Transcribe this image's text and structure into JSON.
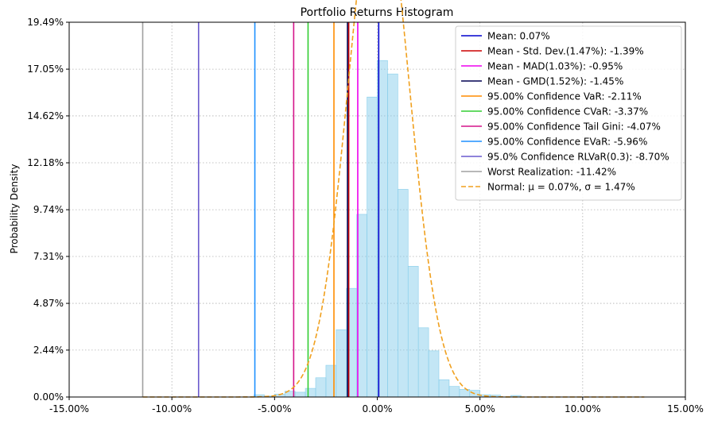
{
  "chart_data": {
    "type": "histogram",
    "title": "Portfolio Returns Histogram",
    "xlabel": "",
    "ylabel": "Probability Density",
    "xlim": [
      -15.0,
      15.0
    ],
    "ylim": [
      0.0,
      19.49
    ],
    "x_ticks": [
      {
        "value": -15,
        "label": "-15.00%"
      },
      {
        "value": -10,
        "label": "-10.00%"
      },
      {
        "value": -5,
        "label": "-5.00%"
      },
      {
        "value": 0,
        "label": "0.00%"
      },
      {
        "value": 5,
        "label": "5.00%"
      },
      {
        "value": 10,
        "label": "10.00%"
      },
      {
        "value": 15,
        "label": "15.00%"
      }
    ],
    "y_ticks": [
      {
        "value": 0.0,
        "label": "0.00%"
      },
      {
        "value": 2.44,
        "label": "2.44%"
      },
      {
        "value": 4.87,
        "label": "4.87%"
      },
      {
        "value": 7.31,
        "label": "7.31%"
      },
      {
        "value": 9.74,
        "label": "9.74%"
      },
      {
        "value": 12.18,
        "label": "12.18%"
      },
      {
        "value": 14.62,
        "label": "14.62%"
      },
      {
        "value": 17.05,
        "label": "17.05%"
      },
      {
        "value": 19.49,
        "label": "19.49%"
      }
    ],
    "grid": true,
    "legend_position": "top-right",
    "histogram": {
      "color": "#87ceeb",
      "bins": [
        {
          "x0": -6.0,
          "x1": -5.5,
          "density": 0.12
        },
        {
          "x0": -5.5,
          "x1": -5.0,
          "density": 0.05
        },
        {
          "x0": -5.0,
          "x1": -4.5,
          "density": 0.15
        },
        {
          "x0": -4.5,
          "x1": -4.0,
          "density": 0.3
        },
        {
          "x0": -4.0,
          "x1": -3.5,
          "density": 0.25
        },
        {
          "x0": -3.5,
          "x1": -3.0,
          "density": 0.45
        },
        {
          "x0": -3.0,
          "x1": -2.5,
          "density": 1.0
        },
        {
          "x0": -2.5,
          "x1": -2.0,
          "density": 1.65
        },
        {
          "x0": -2.0,
          "x1": -1.5,
          "density": 3.5
        },
        {
          "x0": -1.5,
          "x1": -1.0,
          "density": 5.65
        },
        {
          "x0": -1.0,
          "x1": -0.5,
          "density": 9.5
        },
        {
          "x0": -0.5,
          "x1": 0.0,
          "density": 15.6
        },
        {
          "x0": 0.0,
          "x1": 0.5,
          "density": 17.5
        },
        {
          "x0": 0.5,
          "x1": 1.0,
          "density": 16.8
        },
        {
          "x0": 1.0,
          "x1": 1.5,
          "density": 10.8
        },
        {
          "x0": 1.5,
          "x1": 2.0,
          "density": 6.8
        },
        {
          "x0": 2.0,
          "x1": 2.5,
          "density": 3.6
        },
        {
          "x0": 2.5,
          "x1": 3.0,
          "density": 2.4
        },
        {
          "x0": 3.0,
          "x1": 3.5,
          "density": 0.9
        },
        {
          "x0": 3.5,
          "x1": 4.0,
          "density": 0.55
        },
        {
          "x0": 4.0,
          "x1": 4.5,
          "density": 0.4
        },
        {
          "x0": 4.5,
          "x1": 5.0,
          "density": 0.35
        },
        {
          "x0": 5.0,
          "x1": 5.5,
          "density": 0.12
        },
        {
          "x0": 5.5,
          "x1": 6.0,
          "density": 0.1
        },
        {
          "x0": 6.5,
          "x1": 7.0,
          "density": 0.08
        }
      ]
    },
    "vertical_lines": [
      {
        "label": "Mean: 0.07%",
        "x": 0.07,
        "color": "#0000cd"
      },
      {
        "label": "Mean - Std. Dev.(1.47%): -1.39%",
        "x": -1.39,
        "color": "#cc0000"
      },
      {
        "label": "Mean - MAD(1.03%): -0.95%",
        "x": -0.95,
        "color": "#ee00ee"
      },
      {
        "label": "Mean - GMD(1.52%): -1.45%",
        "x": -1.45,
        "color": "#000050"
      },
      {
        "label": "95.00% Confidence VaR: -2.11%",
        "x": -2.11,
        "color": "#ff8c00"
      },
      {
        "label": "95.00% Confidence CVaR: -3.37%",
        "x": -3.37,
        "color": "#32cd32"
      },
      {
        "label": "95.00% Confidence Tail Gini: -4.07%",
        "x": -4.07,
        "color": "#d4148a"
      },
      {
        "label": "95.00% Confidence EVaR: -5.96%",
        "x": -5.96,
        "color": "#1e90ff"
      },
      {
        "label": "95.0% Confidence RLVaR(0.3): -8.70%",
        "x": -8.7,
        "color": "#6a5acd"
      },
      {
        "label": "Worst Realization: -11.42%",
        "x": -11.42,
        "color": "#a0a0a0"
      }
    ],
    "normal_curve": {
      "label_prefix": "Normal: ",
      "label_math": "μ = 0.07%, σ = 1.47%",
      "mu": 0.07,
      "sigma": 1.47,
      "x_range": [
        -11.42,
        13.0
      ],
      "color": "#f0a01e"
    }
  }
}
